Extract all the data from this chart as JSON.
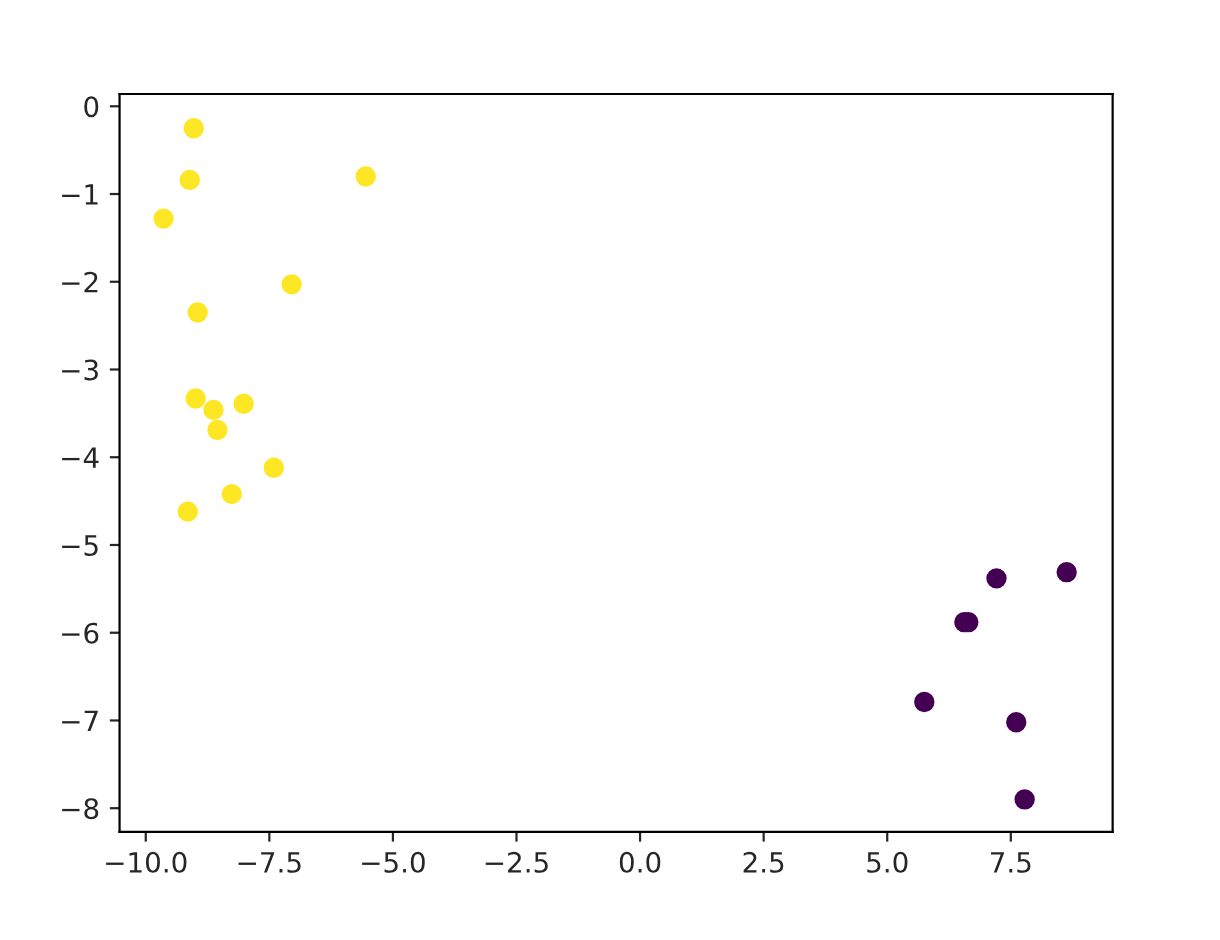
{
  "chart_data": {
    "type": "scatter",
    "marker": "circle",
    "grid": false,
    "legend": false,
    "series": [
      {
        "color": "#fde725",
        "x": [
          -9.03,
          -9.11,
          -9.64,
          -5.55,
          -8.95,
          -7.05,
          -8.99,
          -8.63,
          -8.02,
          -8.55,
          -7.41,
          -8.26,
          -9.15
        ],
        "values": [
          -0.25,
          -0.84,
          -1.28,
          -0.8,
          -2.35,
          -2.03,
          -3.33,
          -3.46,
          -3.39,
          -3.69,
          -4.12,
          -4.42,
          -4.62
        ]
      },
      {
        "color": "#440154",
        "x": [
          8.63,
          7.21,
          6.56,
          6.64,
          5.75,
          7.61,
          7.78
        ],
        "values": [
          -5.31,
          -5.38,
          -5.88,
          -5.88,
          -6.79,
          -7.02,
          -7.9
        ]
      }
    ],
    "xlim": [
      -10.53,
      9.56
    ],
    "ylim": [
      -8.27,
      0.14
    ],
    "xticks": [
      {
        "value": -10,
        "label": "−10.0"
      },
      {
        "value": -7.5,
        "label": "−7.5"
      },
      {
        "value": -5,
        "label": "−5.0"
      },
      {
        "value": -2.5,
        "label": "−2.5"
      },
      {
        "value": 0,
        "label": "0.0"
      },
      {
        "value": 2.5,
        "label": "2.5"
      },
      {
        "value": 5,
        "label": "5.0"
      },
      {
        "value": 7.5,
        "label": "7.5"
      }
    ],
    "yticks": [
      0,
      {
        "value": -1,
        "label": "−1"
      },
      {
        "value": -2,
        "label": "−2"
      },
      {
        "value": -3,
        "label": "−3"
      },
      {
        "value": -4,
        "label": "−4"
      },
      {
        "value": -5,
        "label": "−5"
      },
      {
        "value": -6,
        "label": "−6"
      },
      {
        "value": -7,
        "label": "−7"
      },
      {
        "value": -8,
        "label": "−8"
      }
    ]
  }
}
